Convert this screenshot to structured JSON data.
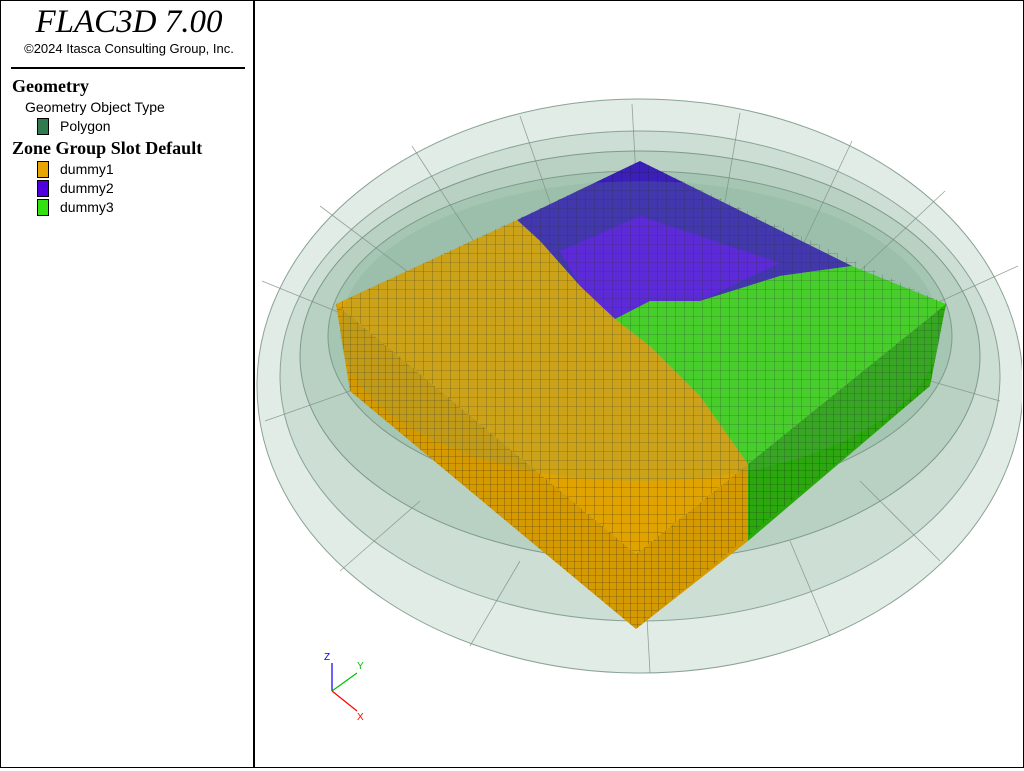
{
  "app": {
    "title": "FLAC3D 7.00",
    "copyright": "©2024 Itasca Consulting Group, Inc."
  },
  "legend": {
    "geometry": {
      "heading": "Geometry",
      "subheading": "Geometry Object Type",
      "items": [
        {
          "label": "Polygon",
          "color": "#2f7a4e"
        }
      ]
    },
    "zone_group": {
      "heading": "Zone Group Slot Default",
      "items": [
        {
          "label": "dummy1",
          "color": "#e8a400"
        },
        {
          "label": "dummy2",
          "color": "#5000e0"
        },
        {
          "label": "dummy3",
          "color": "#33e010"
        }
      ]
    }
  },
  "axes": {
    "z": {
      "label": "Z",
      "color": "#0000ff"
    },
    "y": {
      "label": "Y",
      "color": "#00c000"
    },
    "x": {
      "label": "X",
      "color": "#ff0000"
    }
  }
}
